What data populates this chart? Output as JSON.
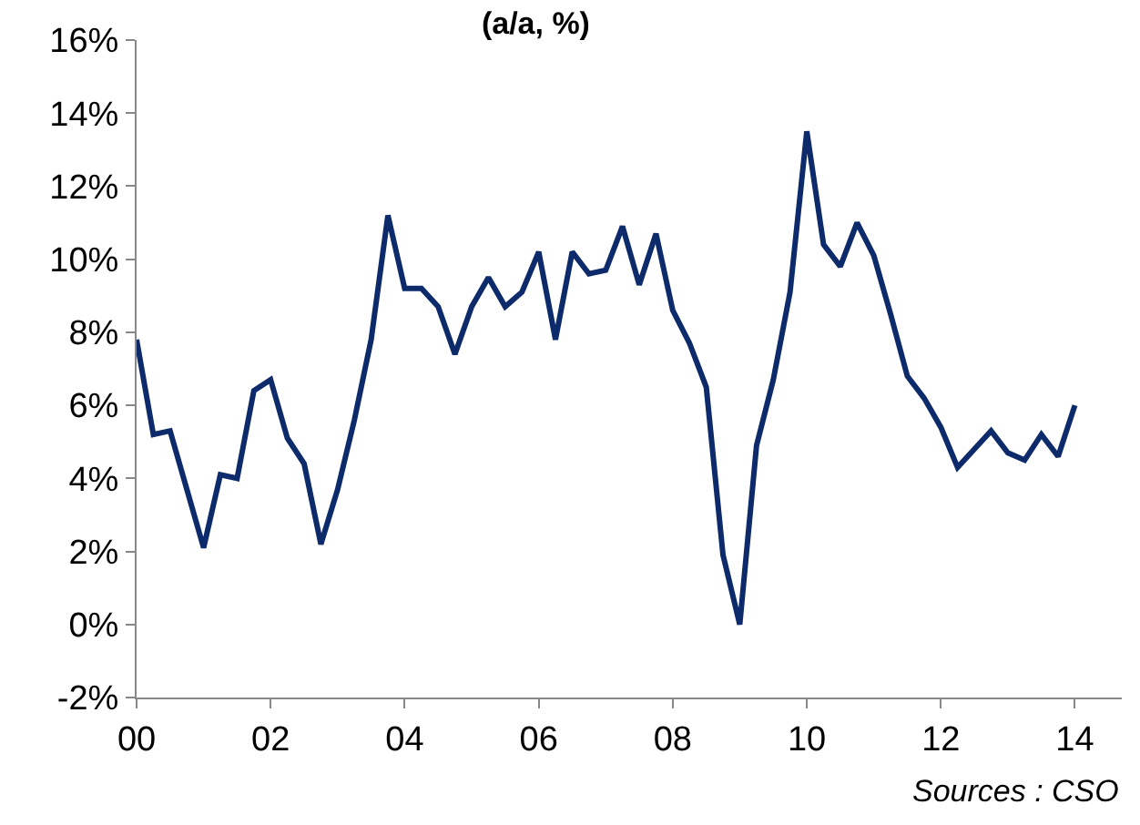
{
  "chart_data": {
    "type": "line",
    "title": "(a/a, %)",
    "x": [
      2000,
      2000.25,
      2000.5,
      2000.75,
      2001,
      2001.25,
      2001.5,
      2001.75,
      2002,
      2002.25,
      2002.5,
      2002.75,
      2003,
      2003.25,
      2003.5,
      2003.75,
      2004,
      2004.25,
      2004.5,
      2004.75,
      2005,
      2005.25,
      2005.5,
      2005.75,
      2006,
      2006.25,
      2006.5,
      2006.75,
      2007,
      2007.25,
      2007.5,
      2007.75,
      2008,
      2008.25,
      2008.5,
      2008.75,
      2009,
      2009.25,
      2009.5,
      2009.75,
      2010,
      2010.25,
      2010.5,
      2010.75,
      2011,
      2011.25,
      2011.5,
      2011.75,
      2012,
      2012.25,
      2012.5,
      2012.75,
      2013,
      2013.25,
      2013.5,
      2013.75,
      2014
    ],
    "series": [
      {
        "color": "#0d2a6b",
        "values": [
          7.8,
          5.2,
          5.3,
          3.7,
          2.1,
          4.1,
          4.0,
          6.4,
          6.7,
          5.1,
          4.4,
          2.2,
          3.7,
          5.6,
          7.8,
          11.2,
          9.2,
          9.2,
          8.7,
          7.4,
          8.7,
          9.5,
          8.7,
          9.1,
          10.2,
          7.8,
          10.2,
          9.6,
          9.7,
          10.9,
          9.3,
          10.7,
          8.6,
          7.7,
          6.5,
          1.9,
          0.0,
          4.9,
          6.7,
          9.1,
          13.5,
          10.4,
          9.8,
          11.0,
          10.1,
          8.5,
          6.8,
          6.2,
          5.4,
          4.3,
          4.8,
          5.3,
          4.7,
          4.5,
          5.2,
          4.6,
          6.0
        ]
      }
    ],
    "xlim": [
      2000,
      2014.7
    ],
    "xticks": [
      {
        "value": 2000,
        "label": "00"
      },
      {
        "value": 2002,
        "label": "02"
      },
      {
        "value": 2004,
        "label": "04"
      },
      {
        "value": 2006,
        "label": "06"
      },
      {
        "value": 2008,
        "label": "08"
      },
      {
        "value": 2010,
        "label": "10"
      },
      {
        "value": 2012,
        "label": "12"
      },
      {
        "value": 2014,
        "label": "14"
      }
    ],
    "ylim": [
      -2,
      16
    ],
    "yticks": [
      {
        "value": -2,
        "label": "-2%"
      },
      {
        "value": 0,
        "label": "0%"
      },
      {
        "value": 2,
        "label": "2%"
      },
      {
        "value": 4,
        "label": "4%"
      },
      {
        "value": 6,
        "label": "6%"
      },
      {
        "value": 8,
        "label": "8%"
      },
      {
        "value": 10,
        "label": "10%"
      },
      {
        "value": 12,
        "label": "12%"
      },
      {
        "value": 14,
        "label": "14%"
      },
      {
        "value": 16,
        "label": "16%"
      }
    ],
    "marker": "none",
    "line_style": "solid",
    "annotations": [
      "Sources : CSO"
    ]
  }
}
